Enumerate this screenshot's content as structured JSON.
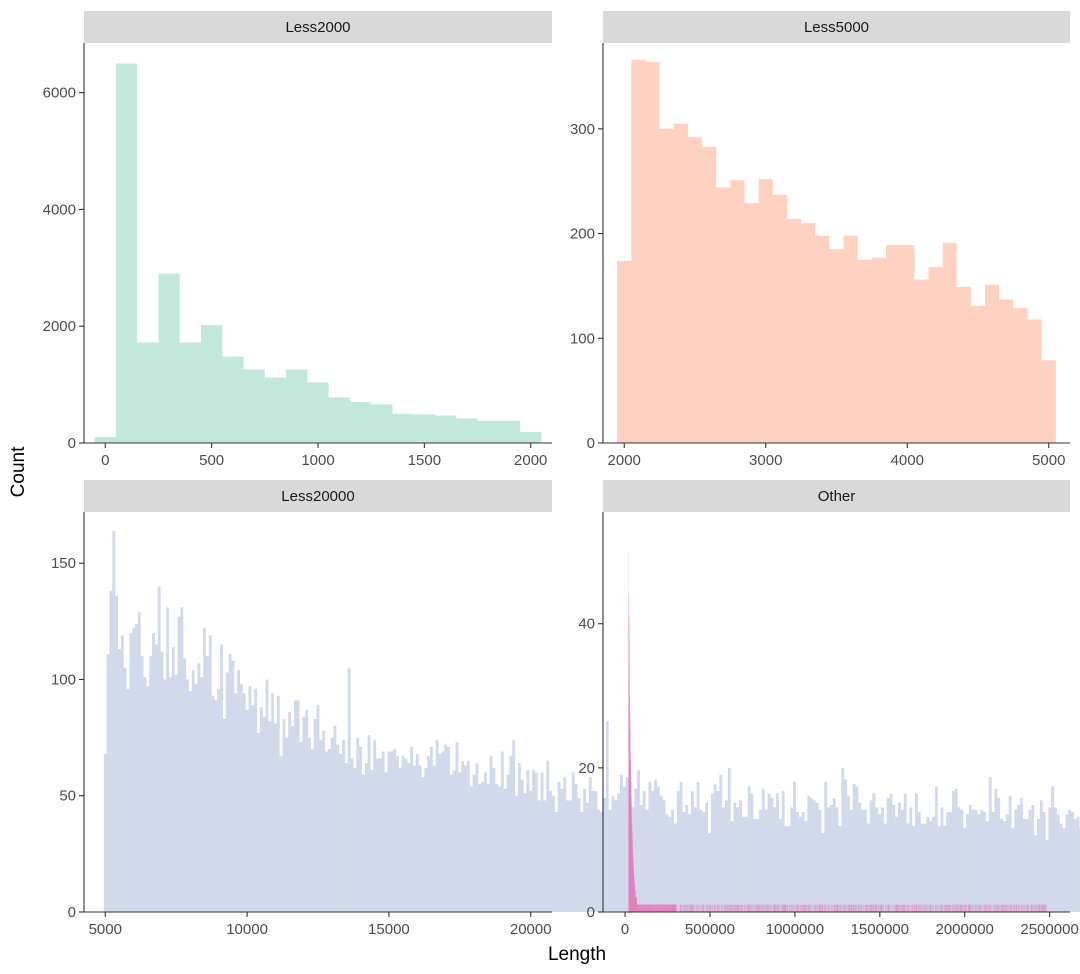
{
  "chart_data": {
    "type": "bar",
    "xlabel": "Length",
    "ylabel": "Count",
    "grid": false,
    "legend": "none",
    "panels": [
      {
        "strip_label": "Less2000",
        "fill": "#66C2A5",
        "opacity": 0.4,
        "xlim": [
          -100,
          2100
        ],
        "ylim": [
          0,
          6850
        ],
        "x_ticks": [
          0,
          500,
          1000,
          1500,
          2000
        ],
        "x_tick_labels": [
          "0",
          "500",
          "1000",
          "1500",
          "2000"
        ],
        "y_ticks": [
          0,
          2000,
          4000,
          6000
        ],
        "y_tick_labels": [
          "0",
          "2000",
          "4000",
          "6000"
        ],
        "bin_width": 100,
        "bins_x": [
          0,
          100,
          200,
          300,
          400,
          500,
          600,
          700,
          800,
          900,
          1000,
          1100,
          1200,
          1300,
          1400,
          1500,
          1600,
          1700,
          1800,
          1900,
          2000
        ],
        "counts": [
          100,
          6500,
          1720,
          2900,
          1720,
          2020,
          1480,
          1260,
          1120,
          1260,
          1040,
          780,
          700,
          660,
          500,
          490,
          470,
          420,
          380,
          380,
          190
        ]
      },
      {
        "strip_label": "Less5000",
        "fill": "#FC8D62",
        "opacity": 0.4,
        "xlim": [
          1850,
          5150
        ],
        "ylim": [
          0,
          382
        ],
        "x_ticks": [
          2000,
          3000,
          4000,
          5000
        ],
        "x_tick_labels": [
          "2000",
          "3000",
          "4000",
          "5000"
        ],
        "y_ticks": [
          0,
          100,
          200,
          300
        ],
        "y_tick_labels": [
          "0",
          "100",
          "200",
          "300"
        ],
        "bin_width": 100,
        "bins_x": [
          2000,
          2100,
          2200,
          2300,
          2400,
          2500,
          2600,
          2700,
          2800,
          2900,
          3000,
          3100,
          3200,
          3300,
          3400,
          3500,
          3600,
          3700,
          3800,
          3900,
          4000,
          4100,
          4200,
          4300,
          4400,
          4500,
          4600,
          4700,
          4800,
          4900,
          5000
        ],
        "counts": [
          174,
          366,
          364,
          300,
          305,
          292,
          283,
          244,
          251,
          229,
          252,
          237,
          214,
          210,
          198,
          185,
          198,
          175,
          177,
          189,
          189,
          156,
          168,
          191,
          149,
          131,
          151,
          137,
          129,
          118,
          79
        ]
      },
      {
        "strip_label": "Less20000",
        "fill": "#8DA0CB",
        "opacity": 0.4,
        "xlim": [
          4250,
          20750
        ],
        "ylim": [
          0,
          172
        ],
        "x_ticks": [
          5000,
          10000,
          15000,
          20000
        ],
        "x_tick_labels": [
          "5000",
          "10000",
          "15000",
          "20000"
        ],
        "y_ticks": [
          0,
          50,
          100,
          150
        ],
        "y_tick_labels": [
          "0",
          "50",
          "100",
          "150"
        ],
        "bin_start": 5000,
        "bin_width": 100,
        "counts": [
          68,
          111,
          138,
          164,
          136,
          113,
          119,
          105,
          96,
          120,
          122,
          124,
          129,
          110,
          101,
          97,
          110,
          120,
          115,
          140,
          112,
          100,
          131,
          101,
          114,
          102,
          127,
          131,
          109,
          100,
          95,
          104,
          98,
          107,
          101,
          122,
          110,
          119,
          93,
          91,
          96,
          115,
          83,
          103,
          111,
          108,
          94,
          104,
          98,
          94,
          87,
          97,
          89,
          96,
          77,
          88,
          84,
          100,
          82,
          94,
          81,
          93,
          67,
          83,
          75,
          86,
          80,
          91,
          91,
          73,
          84,
          87,
          75,
          70,
          83,
          89,
          74,
          78,
          69,
          70,
          75,
          80,
          72,
          68,
          74,
          64,
          105,
          66,
          62,
          75,
          71,
          59,
          64,
          76,
          61,
          74,
          66,
          66,
          69,
          60,
          69,
          69,
          70,
          67,
          62,
          67,
          66,
          64,
          71,
          63,
          68,
          63,
          58,
          62,
          67,
          71,
          63,
          74,
          68,
          69,
          72,
          71,
          59,
          61,
          73,
          60,
          65,
          63,
          65,
          54,
          59,
          64,
          55,
          56,
          60,
          55,
          67,
          62,
          55,
          54,
          69,
          53,
          59,
          67,
          74,
          50,
          64,
          57,
          51,
          61,
          52,
          61,
          60,
          48,
          60,
          48,
          65,
          52,
          50,
          43,
          56,
          53,
          58,
          48,
          48,
          60,
          55,
          49,
          43,
          53,
          47,
          58,
          52,
          52,
          44,
          43,
          49,
          82,
          44,
          50,
          48,
          51,
          59,
          54,
          58,
          41,
          45,
          53,
          61,
          46,
          52,
          44,
          56,
          52,
          57,
          54,
          50,
          48,
          42,
          41,
          44,
          38,
          52,
          56,
          43,
          46,
          42,
          52,
          45,
          56,
          44,
          43,
          47,
          34,
          51,
          55,
          52,
          59,
          45,
          48,
          62,
          39,
          47,
          45,
          48,
          41,
          41,
          54,
          51,
          40,
          40,
          44,
          53,
          44,
          51,
          49,
          45,
          51,
          40,
          52,
          37,
          37,
          45,
          56,
          43,
          41,
          43,
          39,
          50,
          49,
          48,
          47,
          44,
          34,
          56,
          45,
          46,
          49,
          45,
          37,
          62,
          57,
          50,
          44,
          55,
          54,
          47,
          44,
          44,
          38,
          48,
          51,
          45,
          42,
          45,
          38,
          49,
          51,
          46,
          41,
          47,
          44,
          51,
          38,
          45,
          37,
          51,
          43,
          38,
          38,
          41,
          39,
          41,
          54,
          37,
          45,
          37,
          43,
          43,
          52,
          53,
          45,
          44,
          36,
          42,
          46,
          44,
          44,
          42,
          44,
          43,
          39,
          58,
          43,
          53,
          49,
          40,
          39,
          42,
          50,
          36,
          44,
          46,
          49,
          40,
          40,
          44,
          46,
          33,
          40,
          48,
          43,
          31,
          45,
          54,
          45,
          42,
          38,
          36,
          42,
          44,
          43,
          40,
          41,
          36,
          42,
          44,
          52,
          37,
          48,
          38,
          43,
          36,
          48,
          45,
          42,
          39,
          41,
          40,
          45,
          45,
          42,
          50,
          38,
          45,
          45,
          40,
          45,
          33,
          38,
          29,
          48,
          44,
          42,
          48,
          49,
          41,
          44,
          36,
          45,
          37,
          39,
          41,
          44,
          46,
          40,
          38,
          42,
          44,
          44,
          42,
          44,
          44,
          36,
          40,
          48,
          44,
          32,
          36,
          41,
          40,
          23
        ]
      },
      {
        "strip_label": "Other",
        "fill": "#E78AC3",
        "opacity": 0.4,
        "xlim": [
          -130000,
          2620000
        ],
        "ylim": [
          0,
          55.5
        ],
        "x_ticks": [
          0,
          500000,
          1000000,
          1500000,
          2000000,
          2500000
        ],
        "x_tick_labels": [
          "0",
          "500000",
          "1000000",
          "1500000",
          "2000000",
          "2500000"
        ],
        "y_ticks": [
          0,
          20,
          40
        ],
        "y_tick_labels": [
          "0",
          "20",
          "40"
        ],
        "x_range": [
          20000,
          2480000
        ],
        "bin_width": 100,
        "n_bins": 24600,
        "peak_count": 52,
        "decay_scale": 14000,
        "floor_until": 300000
      }
    ]
  }
}
